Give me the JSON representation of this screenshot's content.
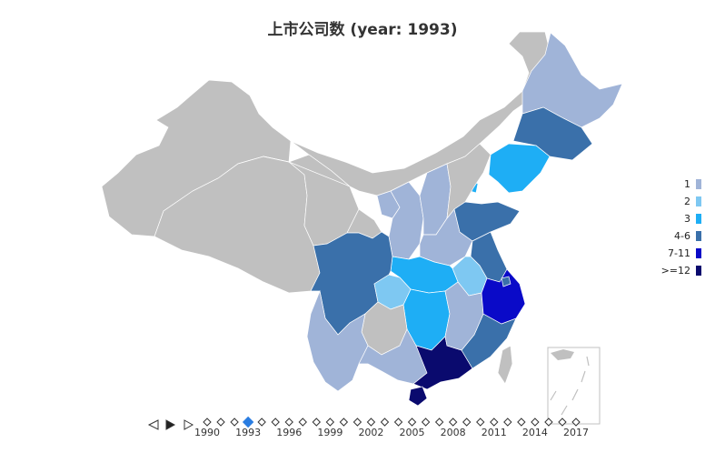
{
  "title": "上市公司数 (year: 1993)",
  "legend": [
    {
      "label": "1",
      "color": "#a0b4d8"
    },
    {
      "label": "2",
      "color": "#7ec8f2"
    },
    {
      "label": "3",
      "color": "#1eaef5"
    },
    {
      "label": "4-6",
      "color": "#3a70aa"
    },
    {
      "label": "7-11",
      "color": "#0a0ac8"
    },
    {
      "label": ">=12",
      "color": "#0a0a6e"
    }
  ],
  "no_data_color": "#c0c0c0",
  "timeline": {
    "years": [
      "1990",
      "1993",
      "1996",
      "1999",
      "2002",
      "2005",
      "2008",
      "2011",
      "2014",
      "2017"
    ],
    "selected": "1993",
    "prev_icon": "triangle-left-outline-icon",
    "play_icon": "play-icon",
    "next_icon": "triangle-right-outline-icon"
  },
  "map": {
    "provinces": [
      {
        "name": "Xinjiang",
        "level": null
      },
      {
        "name": "Tibet",
        "level": null
      },
      {
        "name": "Qinghai",
        "level": null
      },
      {
        "name": "Inner Mongolia",
        "level": null
      },
      {
        "name": "Gansu",
        "level": null
      },
      {
        "name": "Ningxia",
        "level": "1"
      },
      {
        "name": "Shaanxi",
        "level": "1"
      },
      {
        "name": "Shanxi",
        "level": "1"
      },
      {
        "name": "Henan",
        "level": "1"
      },
      {
        "name": "Heilongjiang",
        "level": "1"
      },
      {
        "name": "Jilin",
        "level": "4-6"
      },
      {
        "name": "Liaoning",
        "level": "3"
      },
      {
        "name": "Beijing",
        "level": "2"
      },
      {
        "name": "Tianjin",
        "level": "3"
      },
      {
        "name": "Hebei",
        "level": null
      },
      {
        "name": "Shandong",
        "level": "4-6"
      },
      {
        "name": "Jiangsu",
        "level": "4-6"
      },
      {
        "name": "Anhui",
        "level": "2"
      },
      {
        "name": "Hubei",
        "level": "3"
      },
      {
        "name": "Hunan",
        "level": "3"
      },
      {
        "name": "Sichuan",
        "level": "4-6"
      },
      {
        "name": "Chongqing",
        "level": "2"
      },
      {
        "name": "Guizhou",
        "level": null
      },
      {
        "name": "Yunnan",
        "level": "1"
      },
      {
        "name": "Guangxi",
        "level": "1"
      },
      {
        "name": "Guangdong",
        "level": ">=12"
      },
      {
        "name": "Fujian",
        "level": "4-6"
      },
      {
        "name": "Jiangxi",
        "level": "1"
      },
      {
        "name": "Zhejiang",
        "level": "7-11"
      },
      {
        "name": "Shanghai",
        "level": "4-6"
      },
      {
        "name": "Hainan",
        "level": ">=12"
      },
      {
        "name": "Taiwan",
        "level": null
      }
    ]
  }
}
